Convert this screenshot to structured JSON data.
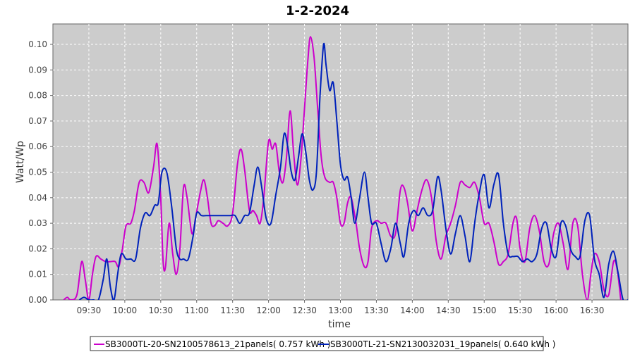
{
  "chart_data": {
    "type": "line",
    "title": "1-2-2024",
    "xlabel": "time",
    "ylabel": "Watt/Wp",
    "xlim": [
      "09:00",
      "17:00"
    ],
    "ylim": [
      0,
      0.108
    ],
    "grid": true,
    "legend_position": "bottom",
    "x_ticks": [
      "09:30",
      "10:00",
      "10:30",
      "11:00",
      "11:30",
      "12:00",
      "12:30",
      "13:00",
      "13:30",
      "14:00",
      "14:30",
      "15:00",
      "15:30",
      "16:00",
      "16:30"
    ],
    "y_ticks": [
      "0.00",
      "0.01",
      "0.02",
      "0.03",
      "0.04",
      "0.05",
      "0.06",
      "0.07",
      "0.08",
      "0.09",
      "0.10"
    ],
    "plot_background": "#cccccc",
    "series": [
      {
        "name": "SB3000TL-20-SN2100578613_21panels( 0.757 kWh )",
        "color": "#cc00cc",
        "points": [
          [
            "09:09",
            0.0
          ],
          [
            "09:12",
            0.001
          ],
          [
            "09:15",
            0.0
          ],
          [
            "09:20",
            0.002
          ],
          [
            "09:24",
            0.015
          ],
          [
            "09:27",
            0.008
          ],
          [
            "09:30",
            0.0
          ],
          [
            "09:33",
            0.01
          ],
          [
            "09:36",
            0.017
          ],
          [
            "09:40",
            0.016
          ],
          [
            "09:44",
            0.015
          ],
          [
            "09:48",
            0.015
          ],
          [
            "09:52",
            0.015
          ],
          [
            "09:55",
            0.013
          ],
          [
            "09:58",
            0.02
          ],
          [
            "10:01",
            0.029
          ],
          [
            "10:05",
            0.03
          ],
          [
            "10:08",
            0.035
          ],
          [
            "10:12",
            0.046
          ],
          [
            "10:16",
            0.046
          ],
          [
            "10:20",
            0.042
          ],
          [
            "10:24",
            0.052
          ],
          [
            "10:27",
            0.061
          ],
          [
            "10:30",
            0.04
          ],
          [
            "10:32",
            0.015
          ],
          [
            "10:34",
            0.013
          ],
          [
            "10:37",
            0.03
          ],
          [
            "10:40",
            0.018
          ],
          [
            "10:43",
            0.01
          ],
          [
            "10:46",
            0.02
          ],
          [
            "10:49",
            0.044
          ],
          [
            "10:52",
            0.04
          ],
          [
            "10:56",
            0.026
          ],
          [
            "10:59",
            0.032
          ],
          [
            "11:03",
            0.042
          ],
          [
            "11:06",
            0.047
          ],
          [
            "11:09",
            0.04
          ],
          [
            "11:12",
            0.03
          ],
          [
            "11:15",
            0.029
          ],
          [
            "11:18",
            0.031
          ],
          [
            "11:22",
            0.03
          ],
          [
            "11:26",
            0.029
          ],
          [
            "11:30",
            0.034
          ],
          [
            "11:34",
            0.053
          ],
          [
            "11:37",
            0.059
          ],
          [
            "11:40",
            0.051
          ],
          [
            "11:44",
            0.035
          ],
          [
            "11:47",
            0.035
          ],
          [
            "11:50",
            0.033
          ],
          [
            "11:53",
            0.03
          ],
          [
            "11:56",
            0.04
          ],
          [
            "12:00",
            0.062
          ],
          [
            "12:03",
            0.059
          ],
          [
            "12:06",
            0.061
          ],
          [
            "12:09",
            0.05
          ],
          [
            "12:12",
            0.046
          ],
          [
            "12:15",
            0.056
          ],
          [
            "12:18",
            0.074
          ],
          [
            "12:21",
            0.057
          ],
          [
            "12:24",
            0.045
          ],
          [
            "12:27",
            0.055
          ],
          [
            "12:30",
            0.075
          ],
          [
            "12:33",
            0.095
          ],
          [
            "12:35",
            0.103
          ],
          [
            "12:38",
            0.095
          ],
          [
            "12:41",
            0.075
          ],
          [
            "12:44",
            0.056
          ],
          [
            "12:47",
            0.048
          ],
          [
            "12:51",
            0.046
          ],
          [
            "12:54",
            0.046
          ],
          [
            "12:57",
            0.04
          ],
          [
            "13:00",
            0.03
          ],
          [
            "13:03",
            0.03
          ],
          [
            "13:06",
            0.038
          ],
          [
            "13:09",
            0.04
          ],
          [
            "13:13",
            0.03
          ],
          [
            "13:16",
            0.02
          ],
          [
            "13:20",
            0.013
          ],
          [
            "13:23",
            0.015
          ],
          [
            "13:26",
            0.028
          ],
          [
            "13:30",
            0.031
          ],
          [
            "13:34",
            0.03
          ],
          [
            "13:38",
            0.03
          ],
          [
            "13:42",
            0.025
          ],
          [
            "13:46",
            0.026
          ],
          [
            "13:50",
            0.043
          ],
          [
            "13:53",
            0.044
          ],
          [
            "13:56",
            0.038
          ],
          [
            "14:00",
            0.027
          ],
          [
            "14:04",
            0.035
          ],
          [
            "14:08",
            0.043
          ],
          [
            "14:12",
            0.047
          ],
          [
            "14:16",
            0.04
          ],
          [
            "14:20",
            0.023
          ],
          [
            "14:24",
            0.016
          ],
          [
            "14:28",
            0.025
          ],
          [
            "14:32",
            0.03
          ],
          [
            "14:36",
            0.037
          ],
          [
            "14:40",
            0.046
          ],
          [
            "14:44",
            0.045
          ],
          [
            "14:48",
            0.044
          ],
          [
            "14:52",
            0.046
          ],
          [
            "14:56",
            0.04
          ],
          [
            "15:00",
            0.03
          ],
          [
            "15:04",
            0.03
          ],
          [
            "15:08",
            0.023
          ],
          [
            "15:12",
            0.014
          ],
          [
            "15:16",
            0.015
          ],
          [
            "15:20",
            0.018
          ],
          [
            "15:24",
            0.03
          ],
          [
            "15:27",
            0.032
          ],
          [
            "15:30",
            0.02
          ],
          [
            "15:34",
            0.015
          ],
          [
            "15:38",
            0.028
          ],
          [
            "15:42",
            0.033
          ],
          [
            "15:46",
            0.027
          ],
          [
            "15:50",
            0.015
          ],
          [
            "15:54",
            0.014
          ],
          [
            "15:58",
            0.026
          ],
          [
            "16:02",
            0.03
          ],
          [
            "16:06",
            0.022
          ],
          [
            "16:10",
            0.012
          ],
          [
            "16:14",
            0.03
          ],
          [
            "16:18",
            0.029
          ],
          [
            "16:22",
            0.01
          ],
          [
            "16:26",
            0.0
          ],
          [
            "16:29",
            0.01
          ],
          [
            "16:32",
            0.018
          ],
          [
            "16:36",
            0.015
          ],
          [
            "16:40",
            0.004
          ],
          [
            "16:44",
            0.002
          ],
          [
            "16:48",
            0.015
          ],
          [
            "16:51",
            0.012
          ],
          [
            "16:54",
            0.0
          ]
        ]
      },
      {
        "name": "SB3000TL-21-SN2130032031_19panels( 0.640 kWh )",
        "color": "#0022bb",
        "points": [
          [
            "09:22",
            0.0
          ],
          [
            "09:26",
            0.001
          ],
          [
            "09:30",
            0.0
          ],
          [
            "09:34",
            0.0
          ],
          [
            "09:38",
            0.0
          ],
          [
            "09:42",
            0.008
          ],
          [
            "09:45",
            0.016
          ],
          [
            "09:48",
            0.005
          ],
          [
            "09:51",
            0.0
          ],
          [
            "09:54",
            0.01
          ],
          [
            "09:57",
            0.018
          ],
          [
            "10:01",
            0.016
          ],
          [
            "10:05",
            0.016
          ],
          [
            "10:09",
            0.016
          ],
          [
            "10:13",
            0.028
          ],
          [
            "10:17",
            0.034
          ],
          [
            "10:21",
            0.033
          ],
          [
            "10:25",
            0.037
          ],
          [
            "10:28",
            0.038
          ],
          [
            "10:31",
            0.05
          ],
          [
            "10:35",
            0.05
          ],
          [
            "10:39",
            0.037
          ],
          [
            "10:43",
            0.02
          ],
          [
            "10:46",
            0.016
          ],
          [
            "10:49",
            0.016
          ],
          [
            "10:53",
            0.016
          ],
          [
            "10:57",
            0.025
          ],
          [
            "11:00",
            0.034
          ],
          [
            "11:04",
            0.033
          ],
          [
            "11:08",
            0.033
          ],
          [
            "11:12",
            0.033
          ],
          [
            "11:16",
            0.033
          ],
          [
            "11:20",
            0.033
          ],
          [
            "11:24",
            0.033
          ],
          [
            "11:28",
            0.033
          ],
          [
            "11:32",
            0.033
          ],
          [
            "11:36",
            0.03
          ],
          [
            "11:40",
            0.033
          ],
          [
            "11:44",
            0.034
          ],
          [
            "11:48",
            0.045
          ],
          [
            "11:51",
            0.052
          ],
          [
            "11:54",
            0.045
          ],
          [
            "11:58",
            0.032
          ],
          [
            "12:02",
            0.03
          ],
          [
            "12:06",
            0.041
          ],
          [
            "12:10",
            0.052
          ],
          [
            "12:13",
            0.065
          ],
          [
            "12:16",
            0.06
          ],
          [
            "12:19",
            0.05
          ],
          [
            "12:22",
            0.047
          ],
          [
            "12:25",
            0.056
          ],
          [
            "12:28",
            0.065
          ],
          [
            "12:31",
            0.058
          ],
          [
            "12:34",
            0.047
          ],
          [
            "12:37",
            0.043
          ],
          [
            "12:40",
            0.05
          ],
          [
            "12:43",
            0.08
          ],
          [
            "12:46",
            0.1
          ],
          [
            "12:48",
            0.092
          ],
          [
            "12:51",
            0.082
          ],
          [
            "12:54",
            0.085
          ],
          [
            "12:57",
            0.07
          ],
          [
            "13:00",
            0.053
          ],
          [
            "13:03",
            0.047
          ],
          [
            "13:06",
            0.048
          ],
          [
            "13:09",
            0.04
          ],
          [
            "13:12",
            0.03
          ],
          [
            "13:16",
            0.04
          ],
          [
            "13:20",
            0.05
          ],
          [
            "13:23",
            0.04
          ],
          [
            "13:26",
            0.03
          ],
          [
            "13:30",
            0.03
          ],
          [
            "13:34",
            0.022
          ],
          [
            "13:38",
            0.015
          ],
          [
            "13:42",
            0.02
          ],
          [
            "13:46",
            0.03
          ],
          [
            "13:50",
            0.022
          ],
          [
            "13:53",
            0.017
          ],
          [
            "13:57",
            0.03
          ],
          [
            "14:01",
            0.035
          ],
          [
            "14:05",
            0.033
          ],
          [
            "14:09",
            0.036
          ],
          [
            "14:13",
            0.033
          ],
          [
            "14:17",
            0.035
          ],
          [
            "14:21",
            0.048
          ],
          [
            "14:24",
            0.043
          ],
          [
            "14:28",
            0.028
          ],
          [
            "14:32",
            0.018
          ],
          [
            "14:36",
            0.026
          ],
          [
            "14:40",
            0.033
          ],
          [
            "14:44",
            0.025
          ],
          [
            "14:48",
            0.015
          ],
          [
            "14:52",
            0.03
          ],
          [
            "14:56",
            0.042
          ],
          [
            "15:00",
            0.049
          ],
          [
            "15:04",
            0.036
          ],
          [
            "15:08",
            0.045
          ],
          [
            "15:12",
            0.049
          ],
          [
            "15:16",
            0.03
          ],
          [
            "15:20",
            0.018
          ],
          [
            "15:24",
            0.017
          ],
          [
            "15:28",
            0.017
          ],
          [
            "15:32",
            0.015
          ],
          [
            "15:36",
            0.016
          ],
          [
            "15:40",
            0.015
          ],
          [
            "15:44",
            0.018
          ],
          [
            "15:48",
            0.028
          ],
          [
            "15:52",
            0.03
          ],
          [
            "15:56",
            0.02
          ],
          [
            "16:00",
            0.017
          ],
          [
            "16:04",
            0.03
          ],
          [
            "16:08",
            0.029
          ],
          [
            "16:12",
            0.02
          ],
          [
            "16:16",
            0.017
          ],
          [
            "16:20",
            0.017
          ],
          [
            "16:24",
            0.031
          ],
          [
            "16:28",
            0.033
          ],
          [
            "16:32",
            0.016
          ],
          [
            "16:36",
            0.01
          ],
          [
            "16:40",
            0.001
          ],
          [
            "16:44",
            0.014
          ],
          [
            "16:48",
            0.019
          ],
          [
            "16:52",
            0.01
          ],
          [
            "16:56",
            0.0
          ],
          [
            "17:00",
            0.0
          ]
        ]
      }
    ]
  }
}
